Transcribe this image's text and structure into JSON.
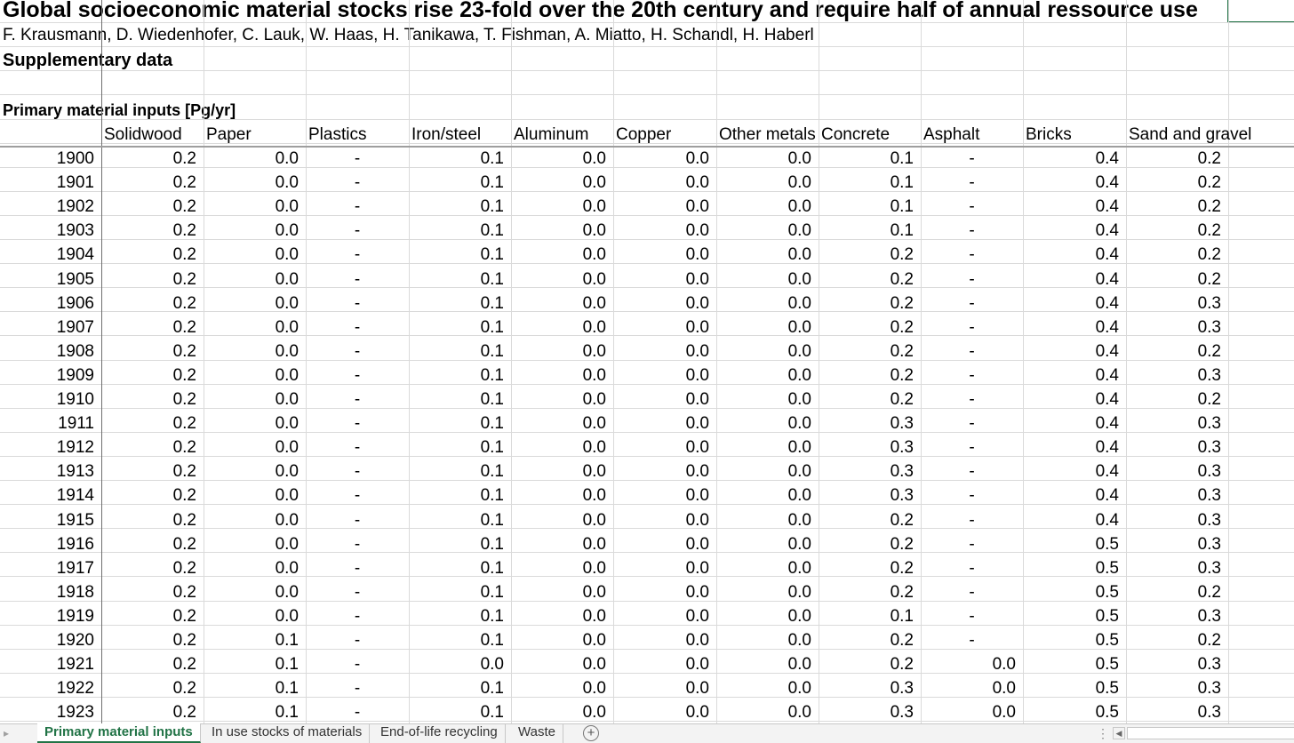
{
  "sheet": {
    "title": "Global socioeconomic material stocks rise 23-fold over the 20th century and require half of annual ressource use",
    "authors": "F. Krausmann, D. Wiedenhofer, C. Lauk, W. Haas, H. Tanikawa, T. Fishman, A. Miatto, H. Schandl, H. Haberl",
    "subtitle": "Supplementary data",
    "section": "Primary material inputs [Pg/yr]",
    "columns": [
      "Solidwood",
      "Paper",
      "Plastics",
      "Iron/steel",
      "Aluminum",
      "Copper",
      "Other metals",
      "Concrete",
      "Asphalt",
      "Bricks",
      "Sand and gravel"
    ],
    "rows": [
      {
        "year": "1900",
        "values": [
          "0.2",
          "0.0",
          "-",
          "0.1",
          "0.0",
          "0.0",
          "0.0",
          "0.1",
          "-",
          "0.4",
          "0.2"
        ]
      },
      {
        "year": "1901",
        "values": [
          "0.2",
          "0.0",
          "-",
          "0.1",
          "0.0",
          "0.0",
          "0.0",
          "0.1",
          "-",
          "0.4",
          "0.2"
        ]
      },
      {
        "year": "1902",
        "values": [
          "0.2",
          "0.0",
          "-",
          "0.1",
          "0.0",
          "0.0",
          "0.0",
          "0.1",
          "-",
          "0.4",
          "0.2"
        ]
      },
      {
        "year": "1903",
        "values": [
          "0.2",
          "0.0",
          "-",
          "0.1",
          "0.0",
          "0.0",
          "0.0",
          "0.1",
          "-",
          "0.4",
          "0.2"
        ]
      },
      {
        "year": "1904",
        "values": [
          "0.2",
          "0.0",
          "-",
          "0.1",
          "0.0",
          "0.0",
          "0.0",
          "0.2",
          "-",
          "0.4",
          "0.2"
        ]
      },
      {
        "year": "1905",
        "values": [
          "0.2",
          "0.0",
          "-",
          "0.1",
          "0.0",
          "0.0",
          "0.0",
          "0.2",
          "-",
          "0.4",
          "0.2"
        ]
      },
      {
        "year": "1906",
        "values": [
          "0.2",
          "0.0",
          "-",
          "0.1",
          "0.0",
          "0.0",
          "0.0",
          "0.2",
          "-",
          "0.4",
          "0.3"
        ]
      },
      {
        "year": "1907",
        "values": [
          "0.2",
          "0.0",
          "-",
          "0.1",
          "0.0",
          "0.0",
          "0.0",
          "0.2",
          "-",
          "0.4",
          "0.3"
        ]
      },
      {
        "year": "1908",
        "values": [
          "0.2",
          "0.0",
          "-",
          "0.1",
          "0.0",
          "0.0",
          "0.0",
          "0.2",
          "-",
          "0.4",
          "0.2"
        ]
      },
      {
        "year": "1909",
        "values": [
          "0.2",
          "0.0",
          "-",
          "0.1",
          "0.0",
          "0.0",
          "0.0",
          "0.2",
          "-",
          "0.4",
          "0.3"
        ]
      },
      {
        "year": "1910",
        "values": [
          "0.2",
          "0.0",
          "-",
          "0.1",
          "0.0",
          "0.0",
          "0.0",
          "0.2",
          "-",
          "0.4",
          "0.2"
        ]
      },
      {
        "year": "1911",
        "values": [
          "0.2",
          "0.0",
          "-",
          "0.1",
          "0.0",
          "0.0",
          "0.0",
          "0.3",
          "-",
          "0.4",
          "0.3"
        ]
      },
      {
        "year": "1912",
        "values": [
          "0.2",
          "0.0",
          "-",
          "0.1",
          "0.0",
          "0.0",
          "0.0",
          "0.3",
          "-",
          "0.4",
          "0.3"
        ]
      },
      {
        "year": "1913",
        "values": [
          "0.2",
          "0.0",
          "-",
          "0.1",
          "0.0",
          "0.0",
          "0.0",
          "0.3",
          "-",
          "0.4",
          "0.3"
        ]
      },
      {
        "year": "1914",
        "values": [
          "0.2",
          "0.0",
          "-",
          "0.1",
          "0.0",
          "0.0",
          "0.0",
          "0.3",
          "-",
          "0.4",
          "0.3"
        ]
      },
      {
        "year": "1915",
        "values": [
          "0.2",
          "0.0",
          "-",
          "0.1",
          "0.0",
          "0.0",
          "0.0",
          "0.2",
          "-",
          "0.4",
          "0.3"
        ]
      },
      {
        "year": "1916",
        "values": [
          "0.2",
          "0.0",
          "-",
          "0.1",
          "0.0",
          "0.0",
          "0.0",
          "0.2",
          "-",
          "0.5",
          "0.3"
        ]
      },
      {
        "year": "1917",
        "values": [
          "0.2",
          "0.0",
          "-",
          "0.1",
          "0.0",
          "0.0",
          "0.0",
          "0.2",
          "-",
          "0.5",
          "0.3"
        ]
      },
      {
        "year": "1918",
        "values": [
          "0.2",
          "0.0",
          "-",
          "0.1",
          "0.0",
          "0.0",
          "0.0",
          "0.2",
          "-",
          "0.5",
          "0.2"
        ]
      },
      {
        "year": "1919",
        "values": [
          "0.2",
          "0.0",
          "-",
          "0.1",
          "0.0",
          "0.0",
          "0.0",
          "0.1",
          "-",
          "0.5",
          "0.3"
        ]
      },
      {
        "year": "1920",
        "values": [
          "0.2",
          "0.1",
          "-",
          "0.1",
          "0.0",
          "0.0",
          "0.0",
          "0.2",
          "-",
          "0.5",
          "0.2"
        ]
      },
      {
        "year": "1921",
        "values": [
          "0.2",
          "0.1",
          "-",
          "0.0",
          "0.0",
          "0.0",
          "0.0",
          "0.2",
          "0.0",
          "0.5",
          "0.3"
        ]
      },
      {
        "year": "1922",
        "values": [
          "0.2",
          "0.1",
          "-",
          "0.1",
          "0.0",
          "0.0",
          "0.0",
          "0.3",
          "0.0",
          "0.5",
          "0.3"
        ]
      },
      {
        "year": "1923",
        "values": [
          "0.2",
          "0.1",
          "-",
          "0.1",
          "0.0",
          "0.0",
          "0.0",
          "0.3",
          "0.0",
          "0.5",
          "0.3"
        ]
      }
    ]
  },
  "tabs": [
    {
      "label": "Primary material inputs",
      "active": true
    },
    {
      "label": "In use stocks of materials",
      "active": false
    },
    {
      "label": "End-of-life recycling",
      "active": false
    },
    {
      "label": "Waste",
      "active": false
    }
  ],
  "add_sheet_symbol": "+",
  "colors": {
    "accent": "#217346",
    "grid": "#dadada"
  }
}
